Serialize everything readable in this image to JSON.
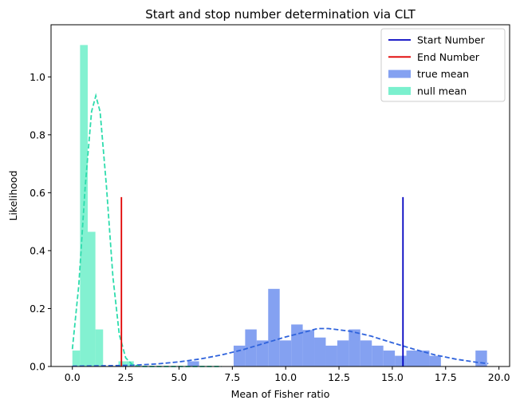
{
  "chart_data": {
    "type": "bar",
    "title": "Start and stop number determination via CLT",
    "xlabel": "Mean of Fisher ratio",
    "ylabel": "Likelihood",
    "xlim": [
      -1.0,
      20.5
    ],
    "ylim": [
      0.0,
      1.18
    ],
    "xticks": [
      {
        "value": 0.0,
        "label": "0.0"
      },
      {
        "value": 2.5,
        "label": "2.5"
      },
      {
        "value": 5.0,
        "label": "5.0"
      },
      {
        "value": 7.5,
        "label": "7.5"
      },
      {
        "value": 10.0,
        "label": "10.0"
      },
      {
        "value": 12.5,
        "label": "12.5"
      },
      {
        "value": 15.0,
        "label": "15.0"
      },
      {
        "value": 17.5,
        "label": "17.5"
      },
      {
        "value": 20.0,
        "label": "20.0"
      }
    ],
    "yticks": [
      {
        "value": 0.0,
        "label": "0.0"
      },
      {
        "value": 0.2,
        "label": "0.2"
      },
      {
        "value": 0.4,
        "label": "0.4"
      },
      {
        "value": 0.6,
        "label": "0.6"
      },
      {
        "value": 0.8,
        "label": "0.8"
      },
      {
        "value": 1.0,
        "label": "1.0"
      }
    ],
    "grid": false,
    "legend_position": "top-right",
    "histograms": [
      {
        "name": "true mean",
        "color": "#6e90ee",
        "bin_edges": [
          0.0,
          0.54,
          1.08,
          1.62,
          2.16,
          2.7,
          3.24,
          3.78,
          4.32,
          4.86,
          5.4,
          5.94,
          6.48,
          7.02,
          7.56,
          8.1,
          8.64,
          9.18,
          9.72,
          10.26,
          10.8,
          11.34,
          11.88,
          12.42,
          12.96,
          13.5,
          14.04,
          14.58,
          15.12,
          15.66,
          16.2,
          16.74,
          17.28,
          17.82,
          18.36,
          18.9,
          19.44
        ],
        "heights": [
          0.0,
          0.0,
          0.0,
          0.0,
          0.0,
          0.0,
          0.0,
          0.0,
          0.0,
          0.0,
          0.018,
          0.0,
          0.0,
          0.0,
          0.072,
          0.128,
          0.09,
          0.268,
          0.09,
          0.145,
          0.126,
          0.1,
          0.072,
          0.09,
          0.128,
          0.09,
          0.072,
          0.055,
          0.037,
          0.055,
          0.055,
          0.037,
          0.0,
          0.0,
          0.0,
          0.055
        ]
      },
      {
        "name": " null mean",
        "color": "#64edc5",
        "bin_edges": [
          0.0,
          0.36,
          0.72,
          1.08,
          1.44,
          1.8,
          2.16,
          2.52,
          2.88,
          3.24,
          3.6
        ],
        "heights": [
          0.055,
          1.11,
          0.465,
          0.128,
          0.0,
          0.0,
          0.018,
          0.018,
          0.0,
          0.0
        ]
      }
    ],
    "fit_curves": [
      {
        "color": "#2f63dc",
        "x": [
          0.0,
          1.0,
          2.0,
          3.0,
          4.0,
          5.0,
          6.0,
          7.0,
          8.0,
          9.0,
          10.0,
          11.0,
          11.5,
          12.0,
          13.0,
          14.0,
          15.0,
          16.0,
          17.0,
          18.0,
          19.0,
          19.5
        ],
        "y": [
          0.001,
          0.002,
          0.003,
          0.005,
          0.009,
          0.016,
          0.026,
          0.04,
          0.058,
          0.08,
          0.102,
          0.121,
          0.131,
          0.131,
          0.122,
          0.105,
          0.082,
          0.06,
          0.04,
          0.025,
          0.014,
          0.01
        ]
      },
      {
        "color": "#2edcad",
        "x": [
          0.0,
          0.3,
          0.6,
          0.9,
          1.1,
          1.3,
          1.6,
          1.9,
          2.2,
          2.5,
          2.8,
          3.1,
          3.4,
          3.7,
          4.0,
          5.0,
          6.0,
          7.0
        ],
        "y": [
          0.06,
          0.28,
          0.62,
          0.88,
          0.935,
          0.88,
          0.62,
          0.31,
          0.11,
          0.03,
          0.007,
          0.001,
          0.0,
          0.0,
          0.0,
          0.0,
          0.0,
          0.0
        ]
      }
    ],
    "vlines": [
      {
        "name": "Start Number",
        "x": 15.5,
        "y_top": 0.585,
        "color": "#0000c0"
      },
      {
        "name": "End Number",
        "x": 2.3,
        "y_top": 0.585,
        "color": "#e00000"
      }
    ],
    "legend": [
      {
        "label": "Start Number",
        "kind": "line",
        "color": "#0000c0"
      },
      {
        "label": "End Number",
        "kind": "line",
        "color": "#e00000"
      },
      {
        "label": "true mean",
        "kind": "patch",
        "color": "#6e90ee"
      },
      {
        "label": " null mean",
        "kind": "patch",
        "color": "#64edc5"
      }
    ]
  }
}
